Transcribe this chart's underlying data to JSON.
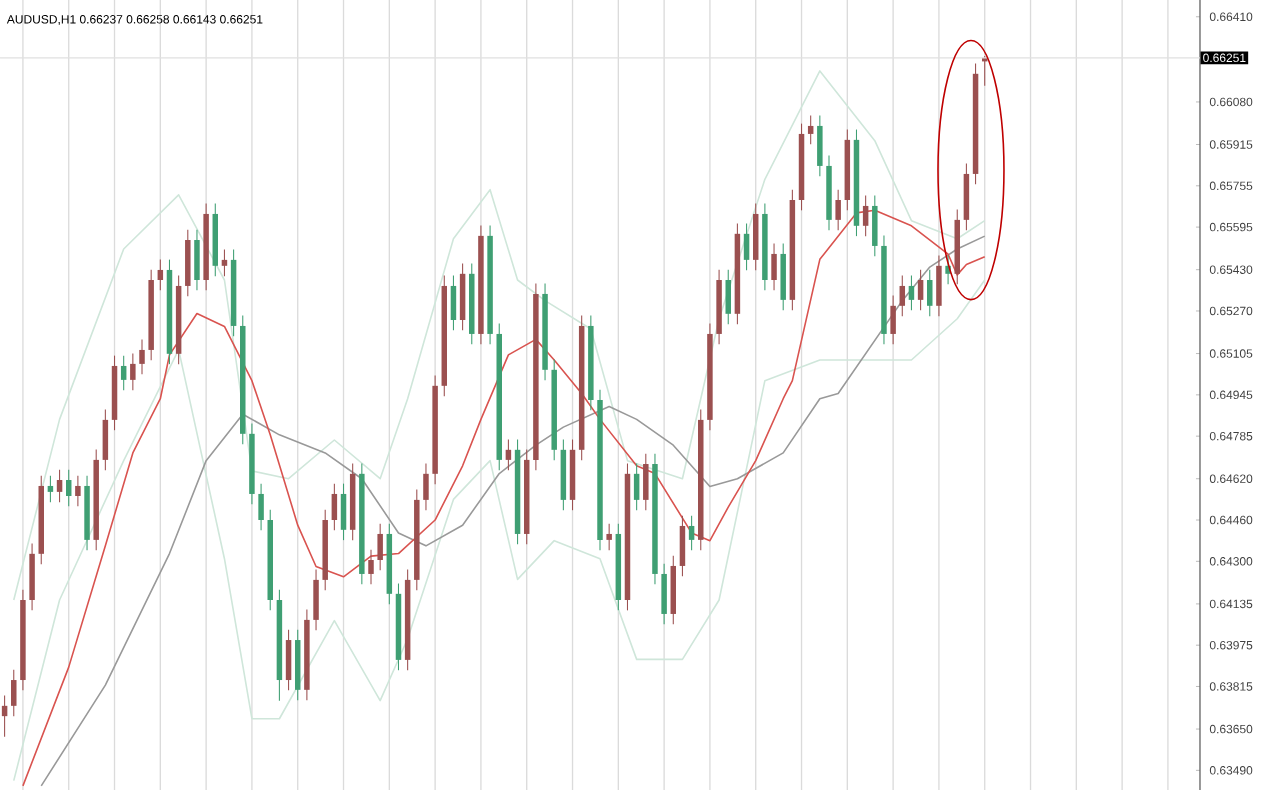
{
  "chart_data": {
    "type": "candlestick",
    "title": "AUDUSD,H1  0.66237 0.66258 0.66143 0.66251",
    "categories": [
      null,
      null,
      null,
      null,
      null,
      null,
      null,
      null,
      null,
      null,
      null,
      null,
      null,
      null,
      null,
      null,
      null,
      null,
      null,
      null,
      null,
      null,
      null,
      null,
      null,
      null,
      null,
      null,
      null,
      null,
      null,
      null,
      null,
      null,
      null,
      null,
      null,
      null,
      null,
      null,
      null,
      null,
      null,
      null,
      null,
      null,
      null,
      null,
      null,
      null,
      null,
      null,
      null,
      null,
      null,
      null,
      null,
      null,
      null,
      null,
      null,
      null,
      null,
      null,
      null,
      null,
      null,
      null,
      null,
      null,
      null,
      null,
      null,
      null,
      null,
      null,
      null,
      null,
      null,
      null,
      null,
      null,
      null,
      null,
      null,
      null,
      null,
      null,
      null,
      null,
      null,
      null,
      null,
      null,
      null,
      null,
      null,
      null,
      null,
      null,
      null,
      null,
      null,
      null,
      null,
      null,
      null,
      null,
      null,
      null,
      null,
      null,
      null,
      null,
      null,
      null,
      null,
      null,
      null,
      null,
      null,
      null,
      null,
      null,
      null,
      null,
      null,
      null,
      null,
      null,
      null
    ],
    "ohlc": [
      [
        0.637,
        0.6378,
        0.6362,
        0.6374
      ],
      [
        0.6374,
        0.6388,
        0.637,
        0.6384
      ],
      [
        0.6384,
        0.6419,
        0.638,
        0.6415
      ],
      [
        0.6415,
        0.64369,
        0.6411,
        0.64329
      ],
      [
        0.64329,
        0.64632,
        0.64289,
        0.64592
      ],
      [
        0.64592,
        0.64632,
        0.64529,
        0.64569
      ],
      [
        0.64569,
        0.64655,
        0.64529,
        0.64615
      ],
      [
        0.64615,
        0.64655,
        0.64513,
        0.64553
      ],
      [
        0.64553,
        0.64632,
        0.64513,
        0.64592
      ],
      [
        0.64592,
        0.64632,
        0.64343,
        0.64383
      ],
      [
        0.64383,
        0.64733,
        0.64343,
        0.64693
      ],
      [
        0.64693,
        0.64888,
        0.64653,
        0.64848
      ],
      [
        0.64848,
        0.65097,
        0.64808,
        0.65057
      ],
      [
        0.65057,
        0.65097,
        0.64963,
        0.65003
      ],
      [
        0.65003,
        0.65105,
        0.64963,
        0.65065
      ],
      [
        0.65065,
        0.65159,
        0.65025,
        0.65119
      ],
      [
        0.65119,
        0.6543,
        0.65079,
        0.6539
      ],
      [
        0.6539,
        0.65469,
        0.6535,
        0.65429
      ],
      [
        0.65429,
        0.65469,
        0.65064,
        0.65104
      ],
      [
        0.65104,
        0.65407,
        0.65064,
        0.65367
      ],
      [
        0.65367,
        0.65585,
        0.65327,
        0.65545
      ],
      [
        0.65545,
        0.65585,
        0.6535,
        0.6539
      ],
      [
        0.6539,
        0.65686,
        0.6535,
        0.65646
      ],
      [
        0.65646,
        0.65686,
        0.65405,
        0.65445
      ],
      [
        0.65445,
        0.65508,
        0.65405,
        0.65468
      ],
      [
        0.65468,
        0.65508,
        0.65172,
        0.65212
      ],
      [
        0.65212,
        0.65252,
        0.64754,
        0.64794
      ],
      [
        0.64794,
        0.64834,
        0.64521,
        0.64561
      ],
      [
        0.64561,
        0.64601,
        0.6442,
        0.6446
      ],
      [
        0.6446,
        0.645,
        0.6411,
        0.6415
      ],
      [
        0.6415,
        0.6419,
        0.6376,
        0.6384
      ],
      [
        0.6384,
        0.64035,
        0.638,
        0.63995
      ],
      [
        0.63995,
        0.64035,
        0.63762,
        0.63802
      ],
      [
        0.63802,
        0.64113,
        0.63762,
        0.64073
      ],
      [
        0.64073,
        0.64268,
        0.64033,
        0.64228
      ],
      [
        0.64228,
        0.645,
        0.64188,
        0.6446
      ],
      [
        0.6446,
        0.64601,
        0.6442,
        0.64561
      ],
      [
        0.64561,
        0.64601,
        0.64382,
        0.64422
      ],
      [
        0.64422,
        0.64679,
        0.64382,
        0.64639
      ],
      [
        0.64639,
        0.64679,
        0.64211,
        0.64251
      ],
      [
        0.64251,
        0.64345,
        0.64211,
        0.64305
      ],
      [
        0.64305,
        0.64446,
        0.64265,
        0.64406
      ],
      [
        0.64406,
        0.64446,
        0.64134,
        0.64174
      ],
      [
        0.64174,
        0.64214,
        0.63878,
        0.63918
      ],
      [
        0.63918,
        0.64268,
        0.63878,
        0.64228
      ],
      [
        0.64228,
        0.64578,
        0.64188,
        0.64538
      ],
      [
        0.64538,
        0.64679,
        0.64498,
        0.64639
      ],
      [
        0.64639,
        0.6502,
        0.64599,
        0.6498
      ],
      [
        0.6498,
        0.65407,
        0.6494,
        0.65367
      ],
      [
        0.65367,
        0.65407,
        0.65195,
        0.65235
      ],
      [
        0.65235,
        0.65454,
        0.65195,
        0.65414
      ],
      [
        0.65414,
        0.65454,
        0.65141,
        0.65181
      ],
      [
        0.65181,
        0.65601,
        0.65141,
        0.65561
      ],
      [
        0.65561,
        0.65601,
        0.65141,
        0.65181
      ],
      [
        0.65181,
        0.65221,
        0.64653,
        0.64693
      ],
      [
        0.64693,
        0.64772,
        0.64653,
        0.64732
      ],
      [
        0.64732,
        0.64772,
        0.64366,
        0.64406
      ],
      [
        0.64406,
        0.64733,
        0.64366,
        0.64693
      ],
      [
        0.64693,
        0.65376,
        0.64653,
        0.65336
      ],
      [
        0.65336,
        0.65376,
        0.65002,
        0.65042
      ],
      [
        0.65042,
        0.65082,
        0.64692,
        0.64732
      ],
      [
        0.64732,
        0.64772,
        0.64498,
        0.64538
      ],
      [
        0.64538,
        0.64772,
        0.64498,
        0.64732
      ],
      [
        0.64732,
        0.65252,
        0.64692,
        0.65212
      ],
      [
        0.65212,
        0.65252,
        0.64885,
        0.64925
      ],
      [
        0.64925,
        0.64965,
        0.64343,
        0.64383
      ],
      [
        0.64383,
        0.64446,
        0.64343,
        0.64406
      ],
      [
        0.64406,
        0.64446,
        0.6411,
        0.6415
      ],
      [
        0.6415,
        0.64679,
        0.6411,
        0.64639
      ],
      [
        0.64639,
        0.64679,
        0.64498,
        0.64538
      ],
      [
        0.64538,
        0.64717,
        0.64498,
        0.64677
      ],
      [
        0.64677,
        0.64717,
        0.64211,
        0.64251
      ],
      [
        0.64251,
        0.64291,
        0.64056,
        0.64096
      ],
      [
        0.64096,
        0.64322,
        0.64056,
        0.64282
      ],
      [
        0.64282,
        0.64477,
        0.64242,
        0.64437
      ],
      [
        0.64437,
        0.64477,
        0.64343,
        0.64383
      ],
      [
        0.64383,
        0.64888,
        0.64343,
        0.64848
      ],
      [
        0.64848,
        0.65221,
        0.64808,
        0.65181
      ],
      [
        0.65181,
        0.6543,
        0.65141,
        0.6539
      ],
      [
        0.6539,
        0.6543,
        0.65219,
        0.65259
      ],
      [
        0.65259,
        0.65609,
        0.65219,
        0.65569
      ],
      [
        0.65569,
        0.65609,
        0.65428,
        0.65468
      ],
      [
        0.65468,
        0.65686,
        0.65428,
        0.65646
      ],
      [
        0.65646,
        0.65686,
        0.6535,
        0.6539
      ],
      [
        0.6539,
        0.65531,
        0.6535,
        0.65491
      ],
      [
        0.65491,
        0.65531,
        0.65273,
        0.65313
      ],
      [
        0.65313,
        0.6574,
        0.65273,
        0.657
      ],
      [
        0.657,
        0.65996,
        0.6566,
        0.65956
      ],
      [
        0.65956,
        0.66027,
        0.65916,
        0.65987
      ],
      [
        0.65987,
        0.66027,
        0.65792,
        0.65832
      ],
      [
        0.65832,
        0.65872,
        0.65583,
        0.65623
      ],
      [
        0.65623,
        0.6574,
        0.65583,
        0.657
      ],
      [
        0.657,
        0.65973,
        0.6566,
        0.65933
      ],
      [
        0.65933,
        0.65973,
        0.6556,
        0.656
      ],
      [
        0.656,
        0.65717,
        0.6556,
        0.65677
      ],
      [
        0.65677,
        0.65717,
        0.65482,
        0.65522
      ],
      [
        0.65522,
        0.65562,
        0.65141,
        0.65181
      ],
      [
        0.65181,
        0.6533,
        0.65141,
        0.6529
      ],
      [
        0.6529,
        0.65407,
        0.6525,
        0.65367
      ],
      [
        0.65367,
        0.65407,
        0.65273,
        0.65313
      ],
      [
        0.65313,
        0.6543,
        0.65273,
        0.6539
      ],
      [
        0.6539,
        0.6543,
        0.6525,
        0.6529
      ],
      [
        0.6529,
        0.65485,
        0.6525,
        0.65445
      ],
      [
        0.65445,
        0.65485,
        0.65374,
        0.65414
      ],
      [
        0.65414,
        0.65663,
        0.65374,
        0.65623
      ],
      [
        0.65623,
        0.65841,
        0.65583,
        0.65801
      ],
      [
        0.65801,
        0.66229,
        0.65761,
        0.66189
      ],
      [
        0.66237,
        0.66258,
        0.66143,
        0.66251
      ],
      null,
      null,
      null,
      null,
      null,
      null,
      null,
      null,
      null,
      null,
      null,
      null,
      null,
      null,
      null,
      null,
      null,
      null,
      null,
      null,
      null,
      null,
      null
    ],
    "colors": [
      "#9b5050",
      "#9b5050",
      "#9b5050",
      "#9b5050",
      "#9b5050",
      "#3f9f73",
      "#9b5050",
      "#3f9f73",
      "#9b5050",
      "#3f9f73",
      "#9b5050",
      "#9b5050",
      "#9b5050",
      "#3f9f73",
      "#9b5050",
      "#9b5050",
      "#9b5050",
      "#9b5050",
      "#3f9f73",
      "#9b5050",
      "#9b5050",
      "#3f9f73",
      "#9b5050",
      "#3f9f73",
      "#9b5050",
      "#3f9f73",
      "#3f9f73",
      "#3f9f73",
      "#3f9f73",
      "#3f9f73",
      "#3f9f73",
      "#9b5050",
      "#3f9f73",
      "#9b5050",
      "#9b5050",
      "#9b5050",
      "#9b5050",
      "#3f9f73",
      "#9b5050",
      "#3f9f73",
      "#9b5050",
      "#9b5050",
      "#3f9f73",
      "#3f9f73",
      "#9b5050",
      "#9b5050",
      "#9b5050",
      "#9b5050",
      "#9b5050",
      "#3f9f73",
      "#9b5050",
      "#3f9f73",
      "#9b5050",
      "#3f9f73",
      "#3f9f73",
      "#9b5050",
      "#3f9f73",
      "#9b5050",
      "#9b5050",
      "#3f9f73",
      "#3f9f73",
      "#3f9f73",
      "#9b5050",
      "#9b5050",
      "#3f9f73",
      "#3f9f73",
      "#9b5050",
      "#3f9f73",
      "#9b5050",
      "#3f9f73",
      "#9b5050",
      "#3f9f73",
      "#3f9f73",
      "#9b5050",
      "#9b5050",
      "#3f9f73",
      "#9b5050",
      "#9b5050",
      "#9b5050",
      "#3f9f73",
      "#9b5050",
      "#3f9f73",
      "#9b5050",
      "#3f9f73",
      "#9b5050",
      "#3f9f73",
      "#9b5050",
      "#9b5050",
      "#9b5050",
      "#3f9f73",
      "#3f9f73",
      "#9b5050",
      "#9b5050",
      "#3f9f73",
      "#9b5050",
      "#3f9f73",
      "#3f9f73",
      "#9b5050",
      "#9b5050",
      "#3f9f73",
      "#9b5050",
      "#3f9f73",
      "#9b5050",
      "#3f9f73",
      "#9b5050",
      "#9b5050",
      "#9b5050",
      "#9b5050",
      null,
      null,
      null,
      null,
      null,
      null,
      null,
      null,
      null,
      null,
      null,
      null,
      null,
      null,
      null,
      null,
      null,
      null,
      null,
      null,
      null,
      null,
      null
    ],
    "series": [
      {
        "type": "line",
        "color": "#cfe6da",
        "values": [
          null,
          0.6415,
          null,
          null,
          null,
          null,
          0.6485,
          null,
          null,
          null,
          null,
          null,
          null,
          0.6551,
          null,
          null,
          null,
          null,
          null,
          0.6572,
          null,
          null,
          null,
          null,
          0.6539,
          null,
          null,
          0.6465,
          null,
          null,
          null,
          0.6462,
          null,
          null,
          null,
          null,
          0.6477,
          null,
          null,
          null,
          null,
          0.6462,
          null,
          null,
          0.6493,
          null,
          null,
          null,
          null,
          0.6555,
          null,
          null,
          null,
          0.6574,
          null,
          null,
          0.6539,
          null,
          null,
          0.6531,
          null,
          null,
          null,
          null,
          0.652,
          null,
          null,
          null,
          0.6469,
          null,
          null,
          null,
          null,
          null,
          0.6462,
          null,
          null,
          null,
          0.6524,
          null,
          null,
          null,
          null,
          0.6578,
          null,
          null,
          null,
          null,
          null,
          0.662,
          null,
          null,
          null,
          null,
          null,
          0.6593,
          null,
          null,
          null,
          0.6562,
          null,
          null,
          null,
          null,
          0.6555,
          null,
          null,
          0.6562,
          null,
          null,
          null,
          null,
          null,
          null,
          null,
          null,
          null,
          null,
          null,
          null,
          null,
          null,
          null,
          null,
          null,
          null,
          null,
          null,
          null,
          null,
          null
        ]
      },
      {
        "type": "line",
        "color": "#cfe6da",
        "values": [
          null,
          0.6345,
          null,
          null,
          null,
          null,
          0.6415,
          null,
          null,
          null,
          null,
          null,
          null,
          0.6469,
          null,
          null,
          null,
          null,
          null,
          0.6512,
          null,
          null,
          null,
          null,
          0.6431,
          null,
          null,
          0.6369,
          null,
          null,
          0.6369,
          null,
          null,
          null,
          null,
          null,
          0.6407,
          null,
          null,
          null,
          null,
          0.6376,
          null,
          null,
          0.64,
          null,
          null,
          null,
          null,
          0.6454,
          null,
          null,
          null,
          0.6469,
          null,
          null,
          0.6423,
          null,
          null,
          null,
          0.6438,
          null,
          null,
          null,
          null,
          0.6431,
          null,
          null,
          null,
          0.6392,
          null,
          null,
          null,
          null,
          0.6392,
          null,
          null,
          null,
          0.6415,
          null,
          null,
          null,
          null,
          0.65,
          null,
          null,
          null,
          null,
          null,
          0.6508,
          null,
          null,
          null,
          null,
          null,
          0.6508,
          null,
          null,
          null,
          0.6508,
          null,
          null,
          null,
          null,
          0.6524,
          null,
          null,
          0.6539,
          null,
          null,
          null,
          null,
          null,
          null,
          null,
          null,
          null,
          null,
          null,
          null,
          null,
          null,
          null,
          null,
          null,
          null,
          null,
          null,
          null,
          null,
          null
        ]
      },
      {
        "type": "line",
        "color": "#999999",
        "values": [
          null,
          null,
          null,
          null,
          0.6343,
          null,
          null,
          null,
          null,
          null,
          null,
          0.6382,
          null,
          null,
          null,
          null,
          null,
          null,
          0.6433,
          null,
          null,
          null,
          0.6469,
          null,
          null,
          null,
          0.6487,
          null,
          null,
          null,
          0.6479,
          null,
          null,
          null,
          null,
          0.6472,
          null,
          null,
          null,
          0.6462,
          null,
          null,
          null,
          0.6441,
          null,
          null,
          0.6436,
          null,
          null,
          null,
          0.6444,
          null,
          null,
          null,
          0.6464,
          null,
          null,
          null,
          0.6475,
          null,
          null,
          0.6482,
          null,
          null,
          null,
          null,
          0.649,
          null,
          null,
          0.6485,
          null,
          null,
          null,
          0.6475,
          null,
          null,
          null,
          0.6459,
          null,
          null,
          0.6462,
          null,
          null,
          null,
          null,
          0.6472,
          null,
          null,
          null,
          0.6493,
          null,
          0.6495,
          null,
          null,
          null,
          null,
          null,
          null,
          0.6531,
          null,
          null,
          0.6544,
          null,
          null,
          0.6551,
          null,
          null,
          0.6556,
          null,
          null,
          null,
          null,
          null,
          null,
          null,
          null,
          null,
          null,
          null,
          null,
          null,
          null,
          null,
          null,
          null,
          null,
          null,
          null,
          null,
          null,
          null
        ]
      },
      {
        "type": "line",
        "color": "#d9534f",
        "values": [
          null,
          null,
          0.6343,
          null,
          null,
          null,
          null,
          0.6389,
          null,
          null,
          null,
          0.6436,
          null,
          null,
          0.6472,
          null,
          null,
          0.6493,
          0.651,
          null,
          null,
          0.6526,
          null,
          null,
          0.6521,
          null,
          null,
          0.65,
          null,
          0.6479,
          null,
          null,
          0.6444,
          null,
          0.6428,
          null,
          null,
          0.6424,
          null,
          null,
          0.6432,
          null,
          null,
          0.6433,
          null,
          null,
          null,
          0.6446,
          null,
          null,
          0.6467,
          null,
          0.6485,
          null,
          null,
          0.651,
          null,
          null,
          0.6516,
          null,
          0.6508,
          null,
          null,
          0.6495,
          null,
          0.6485,
          null,
          null,
          null,
          0.6467,
          null,
          0.6464,
          null,
          null,
          null,
          0.6441,
          null,
          0.6438,
          null,
          0.6451,
          null,
          null,
          0.6469,
          null,
          null,
          0.6493,
          0.65,
          null,
          null,
          0.6547,
          null,
          null,
          null,
          0.6565,
          null,
          0.6566,
          null,
          null,
          null,
          0.656,
          null,
          null,
          null,
          0.6549,
          0.6541,
          0.6545,
          null,
          0.6548,
          null,
          null,
          null,
          null,
          null,
          null,
          null,
          null,
          null,
          null,
          null,
          null,
          null,
          null,
          null,
          null,
          null,
          null,
          null,
          null,
          null,
          null,
          null
        ]
      }
    ],
    "ylim": [
      0.63414,
      0.66475
    ],
    "yticks": [
      {
        "value": 0.6641,
        "label": "0.66410"
      },
      {
        "value": 0.6608,
        "label": "0.66080"
      },
      {
        "value": 0.65915,
        "label": "0.65915"
      },
      {
        "value": 0.65755,
        "label": "0.65755"
      },
      {
        "value": 0.65595,
        "label": "0.65595"
      },
      {
        "value": 0.6543,
        "label": "0.65430"
      },
      {
        "value": 0.6527,
        "label": "0.65270"
      },
      {
        "value": 0.65105,
        "label": "0.65105"
      },
      {
        "value": 0.64945,
        "label": "0.64945"
      },
      {
        "value": 0.64785,
        "label": "0.64785"
      },
      {
        "value": 0.6462,
        "label": "0.64620"
      },
      {
        "value": 0.6446,
        "label": "0.64460"
      },
      {
        "value": 0.643,
        "label": "0.64300"
      },
      {
        "value": 0.64135,
        "label": "0.64135"
      },
      {
        "value": 0.63975,
        "label": "0.63975"
      },
      {
        "value": 0.63815,
        "label": "0.63815"
      },
      {
        "value": 0.6365,
        "label": "0.63650"
      },
      {
        "value": 0.6349,
        "label": "0.63490"
      }
    ],
    "tick_labels": "y",
    "grid": "x",
    "ref_lines": [
      {
        "axis": "y",
        "value": 0.66251,
        "label": "0.66251",
        "color": "#e0e0e0"
      }
    ]
  }
}
